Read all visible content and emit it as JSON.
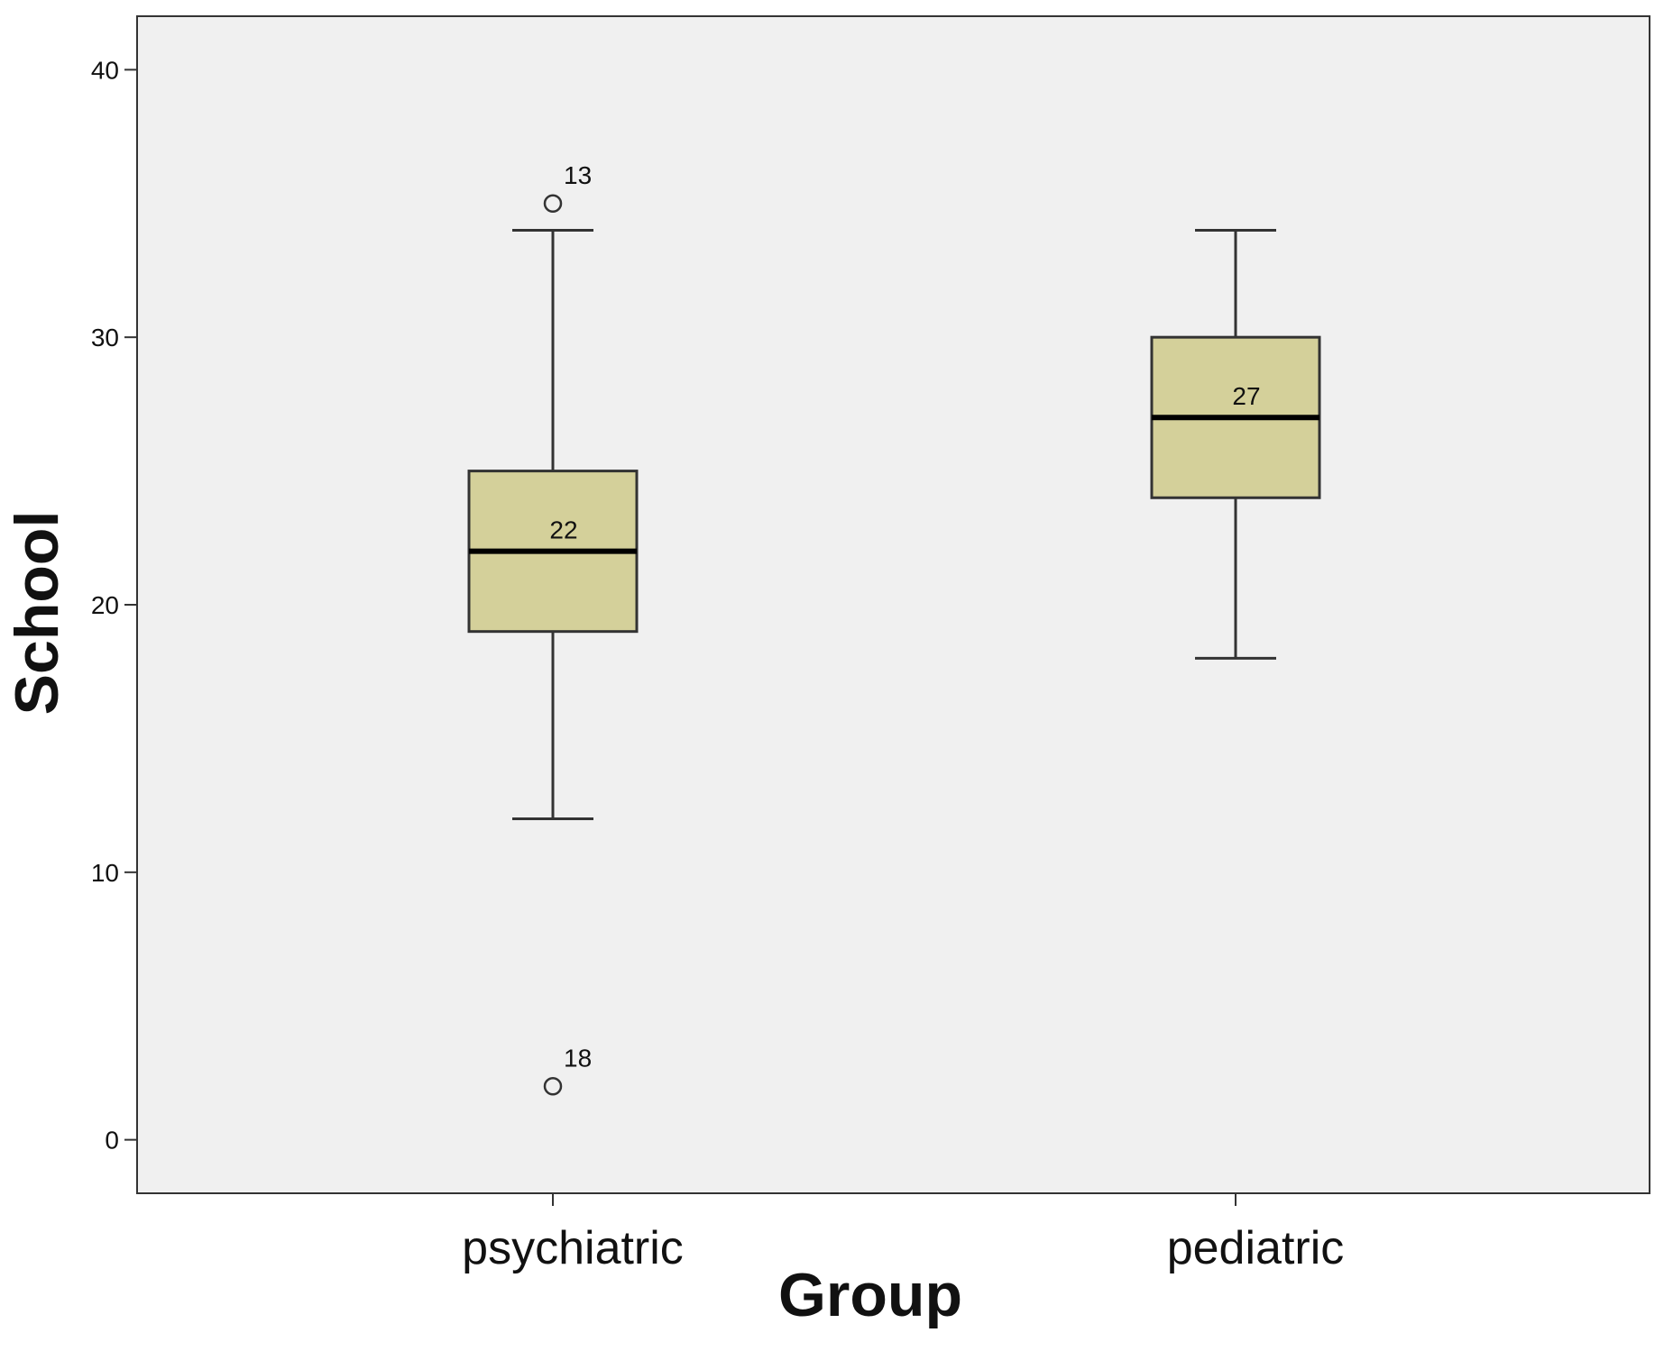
{
  "chart_data": {
    "type": "box",
    "xlabel": "Group",
    "ylabel": "School",
    "ylim": [
      -2,
      42
    ],
    "yticks": [
      0,
      10,
      20,
      30,
      40
    ],
    "grid": false,
    "legend": "none",
    "colors": {
      "plot_background": "#f0f0f0",
      "box_fill": "#d4d09a",
      "stroke": "#333333"
    },
    "categories": [
      "psychiatric",
      "pediatric"
    ],
    "boxes": [
      {
        "category": "psychiatric",
        "whisker_low": 12,
        "q1": 19,
        "median": 22,
        "q3": 25,
        "whisker_high": 34,
        "median_label": "22",
        "outliers": [
          {
            "value": 35,
            "label": "13"
          },
          {
            "value": 2,
            "label": "18"
          }
        ]
      },
      {
        "category": "pediatric",
        "whisker_low": 18,
        "q1": 24,
        "median": 27,
        "q3": 30,
        "whisker_high": 34,
        "median_label": "27",
        "outliers": []
      }
    ]
  }
}
